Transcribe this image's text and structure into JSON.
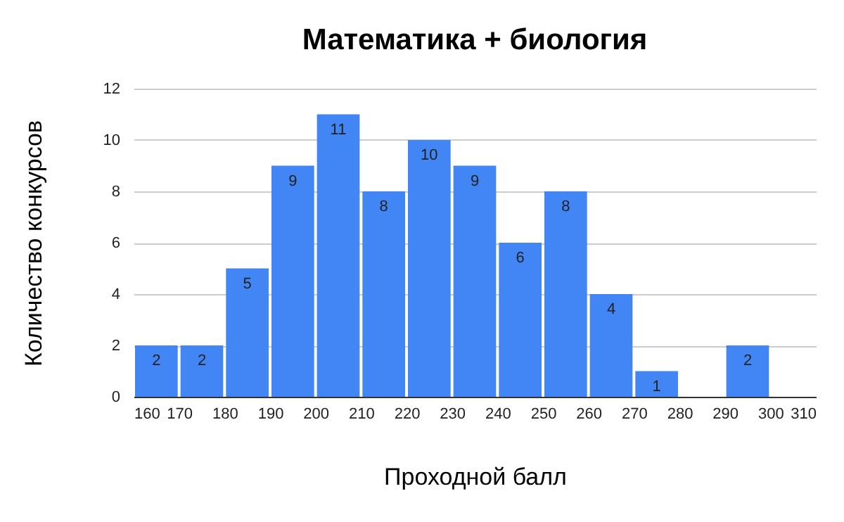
{
  "chart_data": {
    "type": "histogram",
    "title": "Математика + биология",
    "xlabel": "Проходной балл",
    "ylabel": "Количество конкурсов",
    "bins": [
      160,
      170,
      180,
      190,
      200,
      210,
      220,
      230,
      240,
      250,
      260,
      270,
      280,
      290,
      300,
      310
    ],
    "values": [
      2,
      2,
      5,
      9,
      11,
      8,
      10,
      9,
      6,
      8,
      4,
      1,
      0,
      2,
      0
    ],
    "value_labels": [
      "2",
      "2",
      "5",
      "9",
      "11",
      "8",
      "10",
      "9",
      "6",
      "8",
      "4",
      "1",
      null,
      "2",
      null
    ],
    "color": "#4285f4",
    "xlim": [
      160,
      310
    ],
    "xticks": [
      160,
      170,
      180,
      190,
      200,
      210,
      220,
      230,
      240,
      250,
      260,
      270,
      280,
      290,
      300,
      310
    ],
    "ylim": [
      0,
      12
    ],
    "yticks": [
      0,
      2,
      4,
      6,
      8,
      10,
      12
    ],
    "grid": "y"
  }
}
